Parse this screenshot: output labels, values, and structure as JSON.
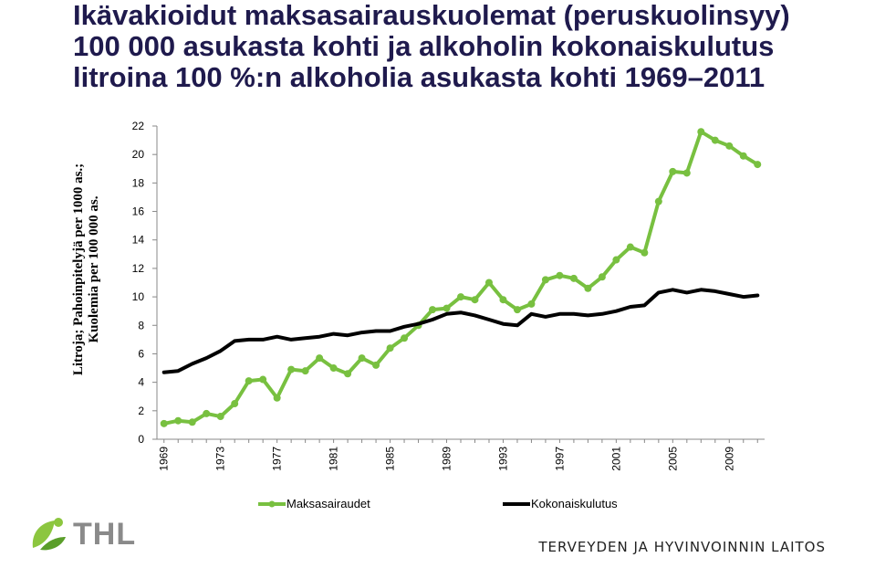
{
  "title_lines": [
    "Ikävakioidut maksasairauskuolemat (peruskuolinsyy)",
    "100 000 asukasta kohti ja alkoholin kokonaiskulutus",
    "litroina 100 %:n alkoholia asukasta kohti 1969–2011"
  ],
  "ylabel_lines": [
    "Litroja; Pahoinpitelyjä per 1000 as.;",
    "Kuolemia per 100 000 as."
  ],
  "colors": {
    "maksasairaudet": "#78c040",
    "kokonaiskulutus": "#000000",
    "title": "#1f1a4d"
  },
  "legend": [
    {
      "label": "Maksasairaudet",
      "series": "maksasairaudet"
    },
    {
      "label": "Kokonaiskulutus",
      "series": "kokonaiskulutus"
    }
  ],
  "logo": {
    "text": "THL",
    "icon": "thl-leaf-logo-icon"
  },
  "organization": "TERVEYDEN JA HYVINVOINNIN LAITOS",
  "chart_data": {
    "type": "line",
    "x": [
      1969,
      1970,
      1971,
      1972,
      1973,
      1974,
      1975,
      1976,
      1977,
      1978,
      1979,
      1980,
      1981,
      1982,
      1983,
      1984,
      1985,
      1986,
      1987,
      1988,
      1989,
      1990,
      1991,
      1992,
      1993,
      1994,
      1995,
      1996,
      1997,
      1998,
      1999,
      2000,
      2001,
      2002,
      2003,
      2004,
      2005,
      2006,
      2007,
      2008,
      2009,
      2010,
      2011
    ],
    "x_tick_labels": [
      "1969",
      "1973",
      "1977",
      "1981",
      "1985",
      "1989",
      "1993",
      "1997",
      "2001",
      "2005",
      "2009"
    ],
    "x_tick_values": [
      1969,
      1973,
      1977,
      1981,
      1985,
      1989,
      1993,
      1997,
      2001,
      2005,
      2009
    ],
    "y_ticks": [
      0,
      2,
      4,
      6,
      8,
      10,
      12,
      14,
      16,
      18,
      20,
      22
    ],
    "ylim": [
      0,
      22
    ],
    "xlim": [
      1968.5,
      2011.5
    ],
    "grid": false,
    "legend_position": "bottom",
    "series": [
      {
        "name": "Maksasairaudet",
        "key": "maksasairaudet",
        "markers": true,
        "values": [
          1.1,
          1.3,
          1.2,
          1.8,
          1.6,
          2.5,
          4.1,
          4.2,
          2.9,
          4.9,
          4.8,
          5.7,
          5.0,
          4.6,
          5.7,
          5.2,
          6.4,
          7.1,
          8.0,
          9.1,
          9.2,
          10.0,
          9.8,
          11.0,
          9.8,
          9.1,
          9.5,
          11.2,
          11.5,
          11.3,
          10.6,
          11.4,
          12.6,
          13.5,
          13.1,
          16.7,
          18.8,
          18.7,
          21.6,
          21.0,
          20.6,
          19.9,
          19.3
        ]
      },
      {
        "name": "Kokonaiskulutus",
        "key": "kokonaiskulutus",
        "markers": false,
        "values": [
          4.7,
          4.8,
          5.3,
          5.7,
          6.2,
          6.9,
          7.0,
          7.0,
          7.2,
          7.0,
          7.1,
          7.2,
          7.4,
          7.3,
          7.5,
          7.6,
          7.6,
          7.9,
          8.1,
          8.4,
          8.8,
          8.9,
          8.7,
          8.4,
          8.1,
          8.0,
          8.8,
          8.6,
          8.8,
          8.8,
          8.7,
          8.8,
          9.0,
          9.3,
          9.4,
          10.3,
          10.5,
          10.3,
          10.5,
          10.4,
          10.2,
          10.0,
          10.1
        ]
      }
    ]
  }
}
